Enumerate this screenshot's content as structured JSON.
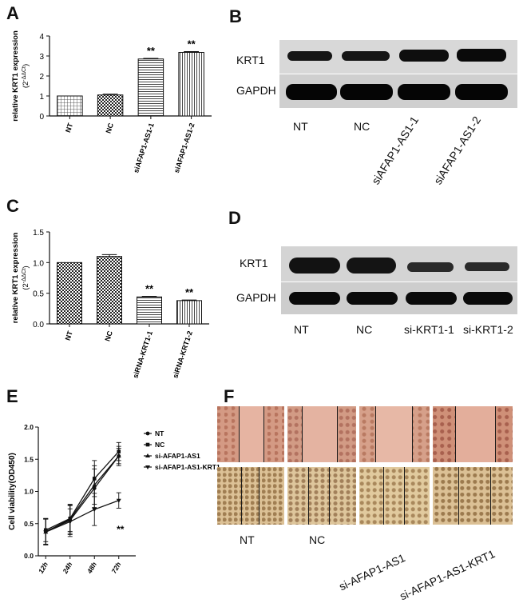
{
  "panels": {
    "A": "A",
    "B": "B",
    "C": "C",
    "D": "D",
    "E": "E",
    "F": "F"
  },
  "chart_data": [
    {
      "panel": "A",
      "type": "bar",
      "ylabel": "relative KRT1 expression",
      "ylabel2": "(2",
      "ylabel2_sup": "-ΔΔCt",
      "ylabel2_end": ")",
      "ylim": [
        0,
        4
      ],
      "yticks": [
        "0",
        "1",
        "2",
        "3",
        "4"
      ],
      "categories": [
        "NT",
        "NC",
        "siAFAP1-AS1-1",
        "siAFAP1-AS1-2"
      ],
      "values": [
        1.0,
        1.05,
        2.85,
        3.18
      ],
      "errors": [
        0.0,
        0.04,
        0.03,
        0.04
      ],
      "patterns": [
        "vgrid",
        "check",
        "hlines",
        "vlines"
      ],
      "annotations": [
        "",
        "",
        "**",
        "**"
      ]
    },
    {
      "panel": "C",
      "type": "bar",
      "ylabel": "relative KRT1 expression",
      "ylabel2": "(2",
      "ylabel2_sup": "-ΔΔCt",
      "ylabel2_end": ")",
      "ylim": [
        0,
        1.5
      ],
      "yticks": [
        "0.0",
        "0.5",
        "1.0",
        "1.5"
      ],
      "categories": [
        "NT",
        "NC",
        "siRNA-KRT1-1",
        "siRNA-KRT1-2"
      ],
      "values": [
        1.0,
        1.1,
        0.44,
        0.38
      ],
      "errors": [
        0.0,
        0.03,
        0.01,
        0.01
      ],
      "patterns": [
        "check",
        "check",
        "hlines",
        "vlines"
      ],
      "annotations": [
        "",
        "",
        "**",
        "**"
      ]
    },
    {
      "panel": "E",
      "type": "line",
      "ylabel": "Cell viability(OD450)",
      "ylim": [
        0,
        2.0
      ],
      "yticks": [
        "0.0",
        "0.5",
        "1.0",
        "1.5",
        "2.0"
      ],
      "categories": [
        "12h",
        "24h",
        "48h",
        "72h"
      ],
      "series": [
        {
          "name": "NT",
          "values": [
            0.38,
            0.55,
            1.05,
            1.55
          ],
          "errors": [
            0.2,
            0.25,
            0.3,
            0.15
          ]
        },
        {
          "name": "NC",
          "values": [
            0.4,
            0.58,
            1.2,
            1.62
          ],
          "errors": [
            0.18,
            0.2,
            0.28,
            0.14
          ]
        },
        {
          "name": "si-AFAP1-AS1",
          "values": [
            0.37,
            0.57,
            1.1,
            1.55
          ],
          "errors": [
            0.2,
            0.22,
            0.3,
            0.12
          ]
        },
        {
          "name": "si-AFAP1-AS1-KRT1",
          "values": [
            0.37,
            0.53,
            0.72,
            0.86
          ],
          "errors": [
            0.2,
            0.2,
            0.25,
            0.12
          ]
        }
      ],
      "annotation": "**"
    }
  ],
  "blot_B": {
    "rows": [
      "KRT1",
      "GAPDH"
    ],
    "lanes": [
      "NT",
      "NC",
      "siAFAP1-AS1-1",
      "siAFAP1-AS1-2"
    ]
  },
  "blot_D": {
    "rows": [
      "KRT1",
      "GAPDH"
    ],
    "lanes": [
      "NT",
      "NC",
      "si-KRT1-1",
      "si-KRT1-2"
    ]
  },
  "wound_F": {
    "lanes": [
      "NT",
      "NC",
      "si-AFAP1-AS1",
      "si-AFAP1-AS1-KRT1"
    ],
    "top_color": "#d9a08a",
    "bottom_color": "#e2c79b"
  }
}
